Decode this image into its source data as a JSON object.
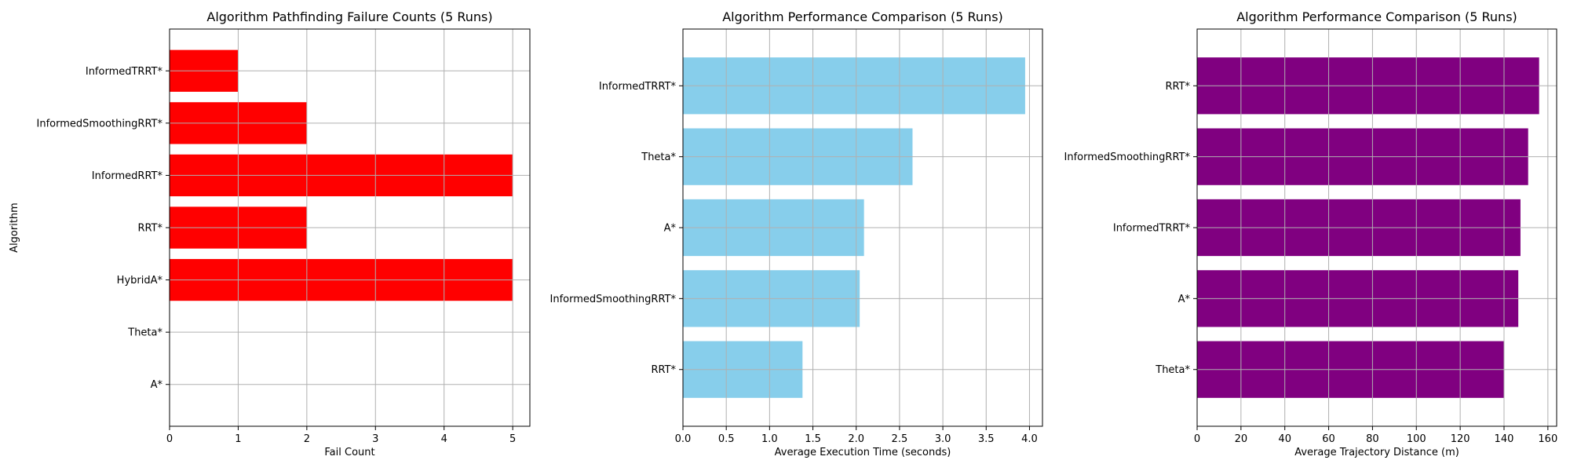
{
  "chart_data": [
    {
      "type": "bar",
      "orientation": "horizontal",
      "title": "Algorithm Pathfinding Failure Counts (5 Runs)",
      "xlabel": "Fail Count",
      "ylabel": "Algorithm",
      "categories": [
        "A*",
        "Theta*",
        "HybridA*",
        "RRT*",
        "InformedRRT*",
        "InformedSmoothingRRT*",
        "InformedTRRT*"
      ],
      "values": [
        0,
        0,
        5,
        2,
        5,
        2,
        1
      ],
      "xlim": [
        0,
        5.25
      ],
      "xticks": [
        0,
        1,
        2,
        3,
        4,
        5
      ],
      "xtick_labels": [
        "0",
        "1",
        "2",
        "3",
        "4",
        "5"
      ],
      "grid": true,
      "color": "#ff0000"
    },
    {
      "type": "bar",
      "orientation": "horizontal",
      "title": "Algorithm Performance Comparison (5 Runs)",
      "xlabel": "Average Execution Time (seconds)",
      "ylabel": "",
      "categories": [
        "RRT*",
        "InformedSmoothingRRT*",
        "A*",
        "Theta*",
        "InformedTRRT*"
      ],
      "values": [
        1.38,
        2.04,
        2.09,
        2.65,
        3.95
      ],
      "xlim": [
        0,
        4.15
      ],
      "xticks": [
        0,
        0.5,
        1,
        1.5,
        2,
        2.5,
        3,
        3.5,
        4
      ],
      "xtick_labels": [
        "0.0",
        "0.5",
        "1.0",
        "1.5",
        "2.0",
        "2.5",
        "3.0",
        "3.5",
        "4.0"
      ],
      "grid": true,
      "color": "#87ceeb"
    },
    {
      "type": "bar",
      "orientation": "horizontal",
      "title": "Algorithm Performance Comparison (5 Runs)",
      "xlabel": "Average Trajectory Distance (m)",
      "ylabel": "",
      "categories": [
        "Theta*",
        "A*",
        "InformedTRRT*",
        "InformedSmoothingRRT*",
        "RRT*"
      ],
      "values": [
        140,
        146.5,
        147.5,
        151,
        156
      ],
      "xlim": [
        0,
        164
      ],
      "xticks": [
        0,
        20,
        40,
        60,
        80,
        100,
        120,
        140,
        160
      ],
      "xtick_labels": [
        "0",
        "20",
        "40",
        "60",
        "80",
        "100",
        "120",
        "140",
        "160"
      ],
      "grid": true,
      "color": "#800080"
    }
  ]
}
